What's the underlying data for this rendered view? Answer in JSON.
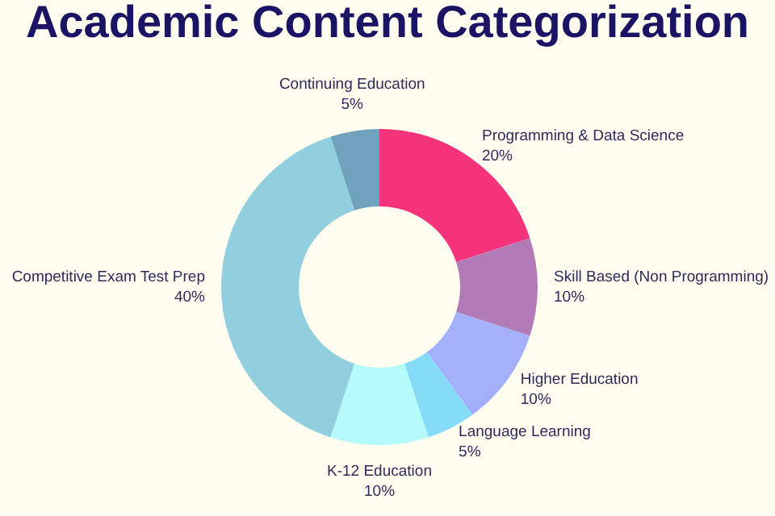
{
  "chart_data": {
    "type": "donut",
    "title": "Academic Content Categorization",
    "categories": [
      "Programming & Data Science",
      "Skill Based (Non Programming)",
      "Higher Education",
      "Language Learning",
      "K-12 Education",
      "Competitive Exam Test Prep",
      "Continuing Education"
    ],
    "values": [
      20,
      10,
      10,
      5,
      10,
      40,
      5
    ],
    "value_labels": [
      "20%",
      "10%",
      "10%",
      "5%",
      "10%",
      "40%",
      "5%"
    ],
    "colors": [
      "#f5337a",
      "#b27ab6",
      "#a3b1fb",
      "#85dcf6",
      "#b5fbfb",
      "#90d0de",
      "#6fa3bd"
    ],
    "legend": false
  }
}
